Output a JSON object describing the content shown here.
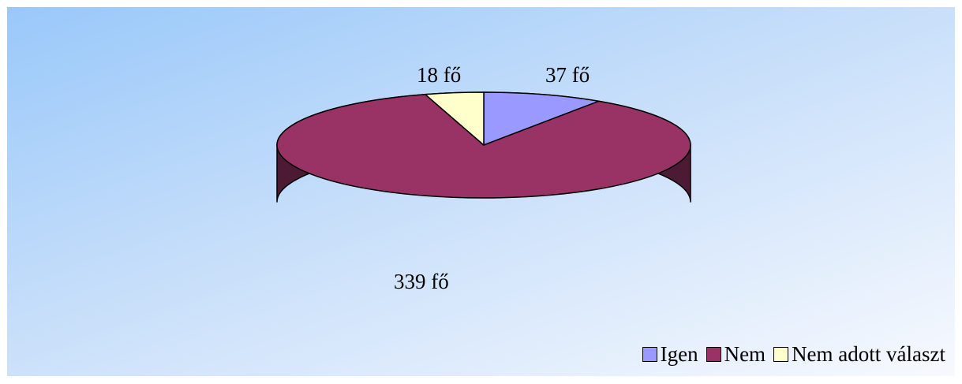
{
  "chart_data": {
    "type": "pie",
    "three_d": true,
    "categories": [
      "Igen",
      "Nem",
      "Nem adott választ"
    ],
    "values": [
      37,
      339,
      18
    ],
    "data_labels": [
      "37 fő",
      "339 fő",
      "18 fő"
    ],
    "colors": [
      "#9999ff",
      "#993366",
      "#ffffcc"
    ],
    "side_colors": [
      "#5c5c99",
      "#4d1a33",
      "#99997a"
    ],
    "legend_position": "bottom-right",
    "grid": false
  }
}
